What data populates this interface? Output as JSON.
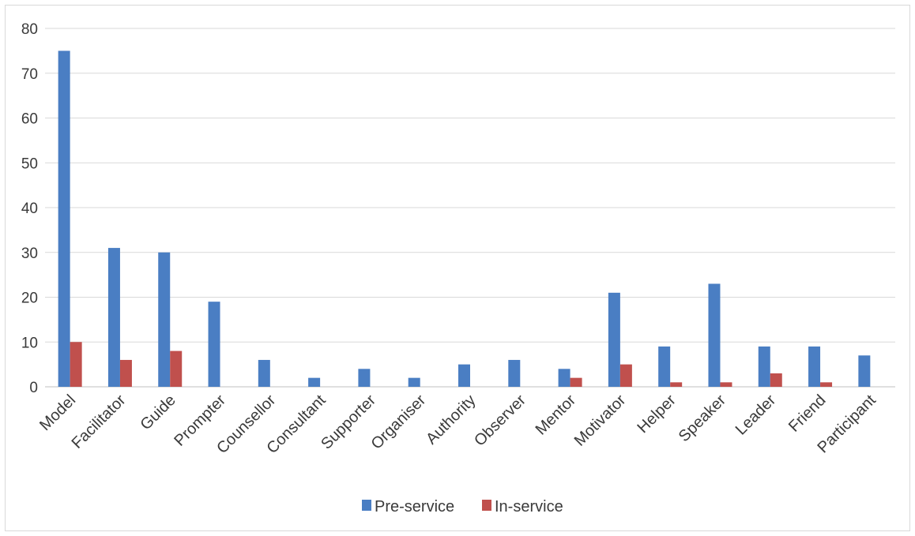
{
  "chart_data": {
    "type": "bar",
    "categories": [
      "Model",
      "Facilitator",
      "Guide",
      "Prompter",
      "Counsellor",
      "Consultant",
      "Supporter",
      "Organiser",
      "Authority",
      "Observer",
      "Mentor",
      "Motivator",
      "Helper",
      "Speaker",
      "Leader",
      "Friend",
      "Participant"
    ],
    "series": [
      {
        "name": "Pre-service",
        "color": "#4a7ec3",
        "values": [
          75,
          31,
          30,
          19,
          6,
          2,
          4,
          2,
          5,
          6,
          4,
          21,
          9,
          23,
          9,
          9,
          7
        ]
      },
      {
        "name": "In-service",
        "color": "#c0504d",
        "values": [
          10,
          6,
          8,
          0,
          0,
          0,
          0,
          0,
          0,
          0,
          2,
          5,
          1,
          1,
          3,
          1,
          0
        ]
      }
    ],
    "ylim": [
      0,
      80
    ],
    "yticks": [
      0,
      10,
      20,
      30,
      40,
      50,
      60,
      70,
      80
    ],
    "grid": true,
    "legend_position": "bottom-center"
  }
}
